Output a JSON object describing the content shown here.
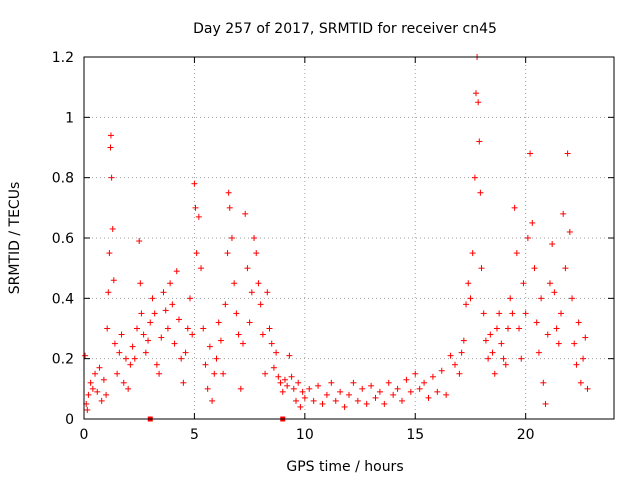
{
  "chart_data": {
    "type": "scatter",
    "title": "Day 257 of 2017, SRMTID for receiver cn45",
    "xlabel": "GPS time / hours",
    "ylabel": "SRMTID / TECUs",
    "xlim": [
      0,
      24
    ],
    "ylim": [
      0,
      1.2
    ],
    "xticks": [
      0,
      5,
      10,
      15,
      20
    ],
    "xtick_labels": [
      "0",
      "5",
      "10",
      "15",
      "20"
    ],
    "yticks": [
      0,
      0.2,
      0.4,
      0.6,
      0.8,
      1.0,
      1.2
    ],
    "ytick_labels": [
      "0",
      "0.2",
      "0.4",
      "0.6",
      "0.8",
      "1",
      "1.2"
    ],
    "grid": true,
    "marker": "+",
    "series": [
      {
        "name": "SRMTID",
        "color": "#ff0000",
        "points": [
          [
            0.05,
            0.21
          ],
          [
            0.1,
            0.05
          ],
          [
            0.15,
            0.03
          ],
          [
            0.2,
            0.08
          ],
          [
            0.3,
            0.12
          ],
          [
            0.4,
            0.1
          ],
          [
            0.5,
            0.15
          ],
          [
            0.6,
            0.09
          ],
          [
            0.7,
            0.17
          ],
          [
            0.8,
            0.06
          ],
          [
            0.9,
            0.13
          ],
          [
            1.0,
            0.08
          ],
          [
            1.05,
            0.3
          ],
          [
            1.1,
            0.42
          ],
          [
            1.15,
            0.55
          ],
          [
            1.2,
            0.9
          ],
          [
            1.22,
            0.94
          ],
          [
            1.25,
            0.8
          ],
          [
            1.3,
            0.63
          ],
          [
            1.35,
            0.46
          ],
          [
            1.4,
            0.25
          ],
          [
            1.5,
            0.15
          ],
          [
            1.6,
            0.22
          ],
          [
            1.7,
            0.28
          ],
          [
            1.8,
            0.12
          ],
          [
            1.9,
            0.2
          ],
          [
            2.0,
            0.1
          ],
          [
            2.1,
            0.18
          ],
          [
            2.2,
            0.24
          ],
          [
            2.3,
            0.2
          ],
          [
            2.4,
            0.3
          ],
          [
            2.5,
            0.59
          ],
          [
            2.55,
            0.45
          ],
          [
            2.6,
            0.35
          ],
          [
            2.7,
            0.28
          ],
          [
            2.8,
            0.22
          ],
          [
            2.9,
            0.26
          ],
          [
            3.0,
            0.32
          ],
          [
            3.1,
            0.4
          ],
          [
            3.2,
            0.35
          ],
          [
            3.3,
            0.18
          ],
          [
            3.4,
            0.15
          ],
          [
            3.5,
            0.27
          ],
          [
            3.6,
            0.42
          ],
          [
            3.7,
            0.36
          ],
          [
            3.8,
            0.3
          ],
          [
            3.9,
            0.45
          ],
          [
            4.0,
            0.38
          ],
          [
            4.1,
            0.25
          ],
          [
            4.2,
            0.49
          ],
          [
            4.3,
            0.33
          ],
          [
            4.4,
            0.2
          ],
          [
            4.5,
            0.12
          ],
          [
            4.6,
            0.22
          ],
          [
            4.7,
            0.3
          ],
          [
            4.8,
            0.4
          ],
          [
            4.9,
            0.28
          ],
          [
            5.0,
            0.78
          ],
          [
            5.05,
            0.7
          ],
          [
            5.1,
            0.55
          ],
          [
            5.2,
            0.67
          ],
          [
            5.3,
            0.5
          ],
          [
            5.4,
            0.3
          ],
          [
            5.5,
            0.18
          ],
          [
            5.6,
            0.1
          ],
          [
            5.7,
            0.24
          ],
          [
            5.8,
            0.06
          ],
          [
            5.9,
            0.15
          ],
          [
            6.0,
            0.2
          ],
          [
            6.1,
            0.32
          ],
          [
            6.2,
            0.26
          ],
          [
            6.3,
            0.15
          ],
          [
            6.4,
            0.38
          ],
          [
            6.5,
            0.55
          ],
          [
            6.55,
            0.75
          ],
          [
            6.6,
            0.7
          ],
          [
            6.7,
            0.6
          ],
          [
            6.8,
            0.45
          ],
          [
            6.9,
            0.35
          ],
          [
            7.0,
            0.28
          ],
          [
            7.1,
            0.1
          ],
          [
            7.2,
            0.25
          ],
          [
            7.3,
            0.68
          ],
          [
            7.4,
            0.5
          ],
          [
            7.5,
            0.32
          ],
          [
            7.6,
            0.42
          ],
          [
            7.7,
            0.6
          ],
          [
            7.8,
            0.55
          ],
          [
            7.9,
            0.45
          ],
          [
            8.0,
            0.38
          ],
          [
            8.1,
            0.28
          ],
          [
            8.2,
            0.15
          ],
          [
            8.3,
            0.42
          ],
          [
            8.4,
            0.3
          ],
          [
            8.5,
            0.25
          ],
          [
            8.6,
            0.17
          ],
          [
            8.7,
            0.22
          ],
          [
            8.8,
            0.14
          ],
          [
            8.9,
            0.12
          ],
          [
            9.0,
            0.09
          ],
          [
            9.1,
            0.13
          ],
          [
            9.2,
            0.11
          ],
          [
            9.3,
            0.21
          ],
          [
            9.4,
            0.14
          ],
          [
            9.5,
            0.1
          ],
          [
            9.6,
            0.06
          ],
          [
            9.7,
            0.12
          ],
          [
            9.8,
            0.04
          ],
          [
            9.9,
            0.09
          ],
          [
            10.0,
            0.07
          ],
          [
            10.2,
            0.1
          ],
          [
            10.4,
            0.06
          ],
          [
            10.6,
            0.11
          ],
          [
            10.8,
            0.05
          ],
          [
            11.0,
            0.08
          ],
          [
            11.2,
            0.12
          ],
          [
            11.4,
            0.06
          ],
          [
            11.6,
            0.09
          ],
          [
            11.8,
            0.04
          ],
          [
            12.0,
            0.08
          ],
          [
            12.2,
            0.12
          ],
          [
            12.4,
            0.06
          ],
          [
            12.6,
            0.1
          ],
          [
            12.8,
            0.05
          ],
          [
            13.0,
            0.11
          ],
          [
            13.2,
            0.07
          ],
          [
            13.4,
            0.09
          ],
          [
            13.6,
            0.05
          ],
          [
            13.8,
            0.12
          ],
          [
            14.0,
            0.08
          ],
          [
            14.2,
            0.1
          ],
          [
            14.4,
            0.06
          ],
          [
            14.6,
            0.13
          ],
          [
            14.8,
            0.09
          ],
          [
            15.0,
            0.15
          ],
          [
            15.2,
            0.1
          ],
          [
            15.4,
            0.12
          ],
          [
            15.6,
            0.07
          ],
          [
            15.8,
            0.14
          ],
          [
            16.0,
            0.09
          ],
          [
            16.2,
            0.16
          ],
          [
            16.4,
            0.08
          ],
          [
            16.6,
            0.21
          ],
          [
            16.8,
            0.18
          ],
          [
            17.0,
            0.15
          ],
          [
            17.1,
            0.22
          ],
          [
            17.2,
            0.26
          ],
          [
            17.3,
            0.38
          ],
          [
            17.4,
            0.45
          ],
          [
            17.5,
            0.4
          ],
          [
            17.6,
            0.55
          ],
          [
            17.7,
            0.8
          ],
          [
            17.75,
            1.08
          ],
          [
            17.8,
            1.2
          ],
          [
            17.85,
            1.05
          ],
          [
            17.9,
            0.92
          ],
          [
            17.95,
            0.75
          ],
          [
            18.0,
            0.5
          ],
          [
            18.1,
            0.35
          ],
          [
            18.2,
            0.26
          ],
          [
            18.3,
            0.2
          ],
          [
            18.4,
            0.28
          ],
          [
            18.5,
            0.22
          ],
          [
            18.6,
            0.15
          ],
          [
            18.7,
            0.3
          ],
          [
            18.8,
            0.35
          ],
          [
            18.9,
            0.25
          ],
          [
            19.0,
            0.2
          ],
          [
            19.1,
            0.18
          ],
          [
            19.2,
            0.3
          ],
          [
            19.3,
            0.4
          ],
          [
            19.4,
            0.35
          ],
          [
            19.5,
            0.7
          ],
          [
            19.6,
            0.55
          ],
          [
            19.7,
            0.3
          ],
          [
            19.8,
            0.2
          ],
          [
            19.9,
            0.45
          ],
          [
            20.0,
            0.35
          ],
          [
            20.1,
            0.6
          ],
          [
            20.2,
            0.88
          ],
          [
            20.3,
            0.65
          ],
          [
            20.4,
            0.5
          ],
          [
            20.5,
            0.32
          ],
          [
            20.6,
            0.22
          ],
          [
            20.7,
            0.4
          ],
          [
            20.8,
            0.12
          ],
          [
            20.9,
            0.05
          ],
          [
            21.0,
            0.28
          ],
          [
            21.1,
            0.45
          ],
          [
            21.2,
            0.58
          ],
          [
            21.3,
            0.42
          ],
          [
            21.4,
            0.3
          ],
          [
            21.5,
            0.25
          ],
          [
            21.6,
            0.35
          ],
          [
            21.7,
            0.68
          ],
          [
            21.8,
            0.5
          ],
          [
            21.9,
            0.88
          ],
          [
            22.0,
            0.62
          ],
          [
            22.1,
            0.4
          ],
          [
            22.2,
            0.25
          ],
          [
            22.3,
            0.18
          ],
          [
            22.4,
            0.32
          ],
          [
            22.5,
            0.12
          ],
          [
            22.6,
            0.2
          ],
          [
            22.7,
            0.27
          ],
          [
            22.8,
            0.1
          ]
        ],
        "points_square": [
          [
            3.0,
            0.0
          ],
          [
            9.0,
            0.0
          ]
        ]
      }
    ]
  }
}
